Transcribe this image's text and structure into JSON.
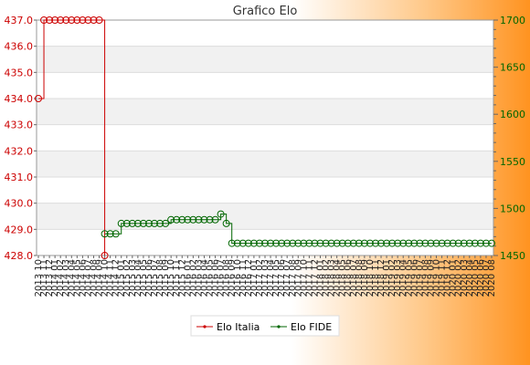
{
  "chart_data": {
    "type": "line",
    "title": "Grafico Elo",
    "x_count": 83,
    "x_tick_labels": [
      "2013 10",
      "2013 11",
      "2013 12",
      "2014 01",
      "2014 02",
      "2014 03",
      "2014 04",
      "2014 05",
      "2014 06",
      "2014 07",
      "2014 08",
      "2014 09",
      "2014 10",
      "2014 11",
      "2014 12",
      "2015 01",
      "2015 02",
      "2015 03",
      "2015 04",
      "2015 05",
      "2015 06",
      "2015 07",
      "2015 08",
      "2015 09",
      "2015 10",
      "2015 11",
      "2015 12",
      "2016 01",
      "2016 02",
      "2016 03",
      "2016 04",
      "2016 05",
      "2016 06",
      "2016 07",
      "2016 08",
      "2016 09",
      "2016 10",
      "2016 11",
      "2016 12",
      "2017 01",
      "2017 02",
      "2017 03",
      "2017 04",
      "2017 05",
      "2017 06",
      "2017 07",
      "2017 08",
      "2017 09",
      "2017 10",
      "2017 11",
      "2017 12",
      "2018 01",
      "2018 02",
      "2018 03",
      "2018 04",
      "2018 05",
      "2018 06",
      "2018 07",
      "2018 08",
      "2018 09",
      "2018 10",
      "2018 11",
      "2018 12",
      "2019 01",
      "2019 02",
      "2019 03",
      "2019 04",
      "2019 05",
      "2019 06",
      "2019 07",
      "2019 08",
      "2019 09",
      "2019 10",
      "2019 11",
      "2019 12",
      "2020 01",
      "2020 02",
      "2020 03",
      "2020 04",
      "2020 05",
      "2020 06",
      "2020 07",
      "2020 08"
    ],
    "y_left": {
      "min": 428.0,
      "max": 437.0,
      "ticks": [
        "428.0",
        "429.0",
        "430.0",
        "431.0",
        "432.0",
        "433.0",
        "434.0",
        "435.0",
        "436.0",
        "437.0"
      ],
      "color": "#cc0000"
    },
    "y_right": {
      "min": 1450,
      "max": 1700,
      "ticks": [
        "1450",
        "1500",
        "1550",
        "1600",
        "1650",
        "1700"
      ],
      "color": "#006600"
    },
    "grid": true,
    "legend_position": "bottom-center",
    "series": [
      {
        "name": "Elo Italia",
        "axis": "left",
        "color": "#cc0000",
        "x_index": [
          0,
          1,
          2,
          3,
          4,
          5,
          6,
          7,
          8,
          9,
          10,
          11,
          12
        ],
        "values": [
          434.0,
          437.0,
          437.0,
          437.0,
          437.0,
          437.0,
          437.0,
          437.0,
          437.0,
          437.0,
          437.0,
          437.0,
          428.0
        ]
      },
      {
        "name": "Elo FIDE",
        "axis": "right",
        "color": "#006600",
        "x_index": [
          12,
          13,
          14,
          15,
          16,
          17,
          18,
          19,
          20,
          21,
          22,
          23,
          24,
          25,
          26,
          27,
          28,
          29,
          30,
          31,
          32,
          33,
          34,
          35,
          36,
          37,
          38,
          39,
          40,
          41,
          42,
          43,
          44,
          45,
          46,
          47,
          48,
          49,
          50,
          51,
          52,
          53,
          54,
          55,
          56,
          57,
          58,
          59,
          60,
          61,
          62,
          63,
          64,
          65,
          66,
          67,
          68,
          69,
          70,
          71,
          72,
          73,
          74,
          75,
          76,
          77,
          78,
          79,
          80,
          81,
          82
        ],
        "values": [
          1473,
          1473,
          1473,
          1484,
          1484,
          1484,
          1484,
          1484,
          1484,
          1484,
          1484,
          1484,
          1488,
          1488,
          1488,
          1488,
          1488,
          1488,
          1488,
          1488,
          1488,
          1494,
          1484,
          1463,
          1463,
          1463,
          1463,
          1463,
          1463,
          1463,
          1463,
          1463,
          1463,
          1463,
          1463,
          1463,
          1463,
          1463,
          1463,
          1463,
          1463,
          1463,
          1463,
          1463,
          1463,
          1463,
          1463,
          1463,
          1463,
          1463,
          1463,
          1463,
          1463,
          1463,
          1463,
          1463,
          1463,
          1463,
          1463,
          1463,
          1463,
          1463,
          1463,
          1463,
          1463,
          1463,
          1463,
          1463,
          1463,
          1463,
          1463
        ]
      }
    ]
  }
}
